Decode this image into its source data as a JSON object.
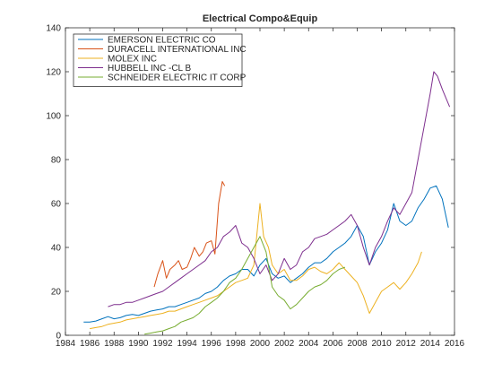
{
  "chart_data": {
    "type": "line",
    "title": "Electrical Compo&Equip",
    "xlabel": "",
    "ylabel": "",
    "xlim": [
      1984,
      2016
    ],
    "ylim": [
      0,
      140
    ],
    "xticks": [
      1984,
      1986,
      1988,
      1990,
      1992,
      1994,
      1996,
      1998,
      2000,
      2002,
      2004,
      2006,
      2008,
      2010,
      2012,
      2014,
      2016
    ],
    "yticks": [
      0,
      20,
      40,
      60,
      80,
      100,
      120,
      140
    ],
    "grid": false,
    "legend_position": "top-left",
    "series": [
      {
        "name": "EMERSON ELECTRIC CO",
        "color": "#0072BD",
        "x": [
          1985.5,
          1986,
          1986.5,
          1987,
          1987.5,
          1988,
          1988.5,
          1989,
          1989.5,
          1990,
          1990.5,
          1991,
          1991.5,
          1992,
          1992.5,
          1993,
          1993.5,
          1994,
          1994.5,
          1995,
          1995.5,
          1996,
          1996.5,
          1997,
          1997.5,
          1998,
          1998.5,
          1999,
          1999.5,
          2000,
          2000.5,
          2001,
          2001.5,
          2002,
          2002.5,
          2003,
          2003.5,
          2004,
          2004.5,
          2005,
          2005.5,
          2006,
          2006.5,
          2007,
          2007.5,
          2008,
          2008.5,
          2009,
          2009.5,
          2010,
          2010.5,
          2011,
          2011.5,
          2012,
          2012.5,
          2013,
          2013.5,
          2014,
          2014.5,
          2015,
          2015.5
        ],
        "y": [
          6,
          6,
          6.5,
          7.5,
          8.5,
          7.5,
          8,
          9,
          9.5,
          9,
          10,
          11,
          11.5,
          12,
          13,
          13,
          14,
          15,
          16,
          17,
          19,
          20,
          22,
          25,
          27,
          28,
          30,
          30,
          27,
          32,
          35,
          28,
          26,
          27,
          24,
          26,
          28,
          31,
          33,
          33,
          35,
          38,
          40,
          42,
          45,
          50,
          45,
          32,
          38,
          42,
          48,
          60,
          52,
          50,
          52,
          58,
          62,
          67,
          68,
          62,
          49
        ]
      },
      {
        "name": "DURACELL INTERNATIONAL INC",
        "color": "#D95319",
        "x": [
          1991.3,
          1991.6,
          1992,
          1992.3,
          1992.6,
          1993,
          1993.3,
          1993.6,
          1994,
          1994.3,
          1994.6,
          1995,
          1995.3,
          1995.6,
          1996,
          1996.3,
          1996.6,
          1996.9,
          1997.1
        ],
        "y": [
          22,
          28,
          34,
          26,
          30,
          32,
          34,
          30,
          31,
          35,
          40,
          36,
          38,
          42,
          43,
          37,
          60,
          70,
          68
        ]
      },
      {
        "name": "MOLEX INC",
        "color": "#EDB120",
        "x": [
          1986,
          1986.5,
          1987,
          1987.5,
          1988,
          1988.5,
          1989,
          1989.5,
          1990,
          1990.5,
          1991,
          1991.5,
          1992,
          1992.5,
          1993,
          1993.5,
          1994,
          1994.5,
          1995,
          1995.5,
          1996,
          1996.5,
          1997,
          1997.5,
          1998,
          1998.5,
          1999,
          1999.5,
          2000,
          2000.3,
          2000.7,
          2001,
          2001.5,
          2002,
          2002.5,
          2003,
          2003.5,
          2004,
          2004.5,
          2005,
          2005.5,
          2006,
          2006.5,
          2007,
          2007.5,
          2008,
          2008.5,
          2009,
          2009.5,
          2010,
          2010.5,
          2011,
          2011.5,
          2012,
          2012.5,
          2013,
          2013.3
        ],
        "y": [
          3,
          3.5,
          4,
          5,
          5.5,
          6,
          7,
          7.5,
          8,
          8.5,
          9,
          9.5,
          10,
          11,
          11,
          12,
          13,
          14,
          15,
          16,
          17,
          18,
          20,
          22,
          24,
          25,
          26,
          32,
          60,
          45,
          40,
          32,
          28,
          30,
          25,
          25,
          27,
          30,
          31,
          29,
          28,
          30,
          33,
          30,
          27,
          24,
          18,
          10,
          15,
          20,
          22,
          24,
          21,
          24,
          28,
          33,
          38
        ]
      },
      {
        "name": "HUBBELL INC -CL B",
        "color": "#7E2F8E",
        "x": [
          1987.5,
          1988,
          1988.5,
          1989,
          1989.5,
          1990,
          1990.5,
          1991,
          1991.5,
          1992,
          1992.5,
          1993,
          1993.5,
          1994,
          1994.5,
          1995,
          1995.5,
          1996,
          1996.5,
          1997,
          1997.5,
          1998,
          1998.5,
          1999,
          1999.5,
          2000,
          2000.5,
          2001,
          2001.5,
          2002,
          2002.5,
          2003,
          2003.5,
          2004,
          2004.5,
          2005,
          2005.5,
          2006,
          2006.5,
          2007,
          2007.5,
          2008,
          2008.5,
          2009,
          2009.5,
          2010,
          2010.5,
          2011,
          2011.5,
          2012,
          2012.5,
          2013,
          2013.5,
          2014,
          2014.3,
          2014.6,
          2015,
          2015.3,
          2015.6
        ],
        "y": [
          13,
          14,
          14,
          15,
          15,
          16,
          17,
          18,
          19,
          20,
          22,
          24,
          26,
          28,
          30,
          32,
          34,
          38,
          40,
          45,
          47,
          50,
          42,
          40,
          35,
          28,
          32,
          25,
          28,
          35,
          30,
          32,
          38,
          40,
          44,
          45,
          46,
          48,
          50,
          52,
          55,
          50,
          40,
          32,
          40,
          45,
          52,
          58,
          55,
          60,
          65,
          80,
          95,
          110,
          120,
          118,
          112,
          108,
          104
        ]
      },
      {
        "name": "SCHNEIDER ELECTRIC IT CORP",
        "color": "#77AC30",
        "x": [
          1990.5,
          1991,
          1991.5,
          1992,
          1992.5,
          1993,
          1993.5,
          1994,
          1994.5,
          1995,
          1995.5,
          1996,
          1996.5,
          1997,
          1997.5,
          1998,
          1998.5,
          1999,
          1999.5,
          2000,
          2000.5,
          2001,
          2001.5,
          2002,
          2002.5,
          2003,
          2003.5,
          2004,
          2004.5,
          2005,
          2005.5,
          2006,
          2006.5,
          2007
        ],
        "y": [
          0.5,
          1,
          1.5,
          2,
          3,
          4,
          6,
          7,
          8,
          10,
          13,
          15,
          17,
          20,
          24,
          26,
          30,
          35,
          40,
          45,
          38,
          22,
          18,
          16,
          12,
          14,
          17,
          20,
          22,
          23,
          25,
          28,
          30,
          31
        ]
      }
    ]
  }
}
